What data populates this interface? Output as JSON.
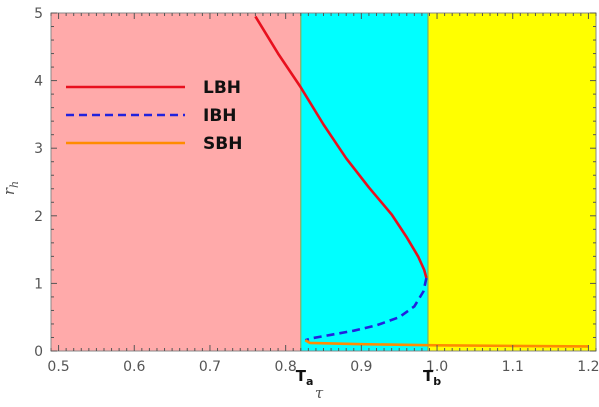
{
  "chart_data": {
    "type": "line",
    "title": "",
    "xlabel": "τ",
    "ylabel": "r_h",
    "ylabel_main": "r",
    "ylabel_sub": "h",
    "xlim": [
      0.49,
      1.21
    ],
    "ylim": [
      0,
      5
    ],
    "xticks": [
      0.5,
      0.6,
      0.7,
      0.8,
      0.9,
      1.0,
      1.1,
      1.2
    ],
    "xtick_labels": [
      "0.5",
      "0.6",
      "0.7",
      "0.8",
      "0.9",
      "1.0",
      "1.1",
      "1.2"
    ],
    "yticks": [
      0,
      1,
      2,
      3,
      4,
      5
    ],
    "ytick_labels": [
      "0",
      "1",
      "2",
      "3",
      "4",
      "5"
    ],
    "regions": [
      {
        "from": 0.49,
        "to": 0.82,
        "color": "#ffaaaa"
      },
      {
        "from": 0.82,
        "to": 0.988,
        "color": "#00ffff"
      },
      {
        "from": 0.988,
        "to": 1.21,
        "color": "#ffff00"
      }
    ],
    "region_border_color": "#7fb060",
    "markers": [
      {
        "x": 0.82,
        "main": "T",
        "sub": "a"
      },
      {
        "x": 0.988,
        "main": "T",
        "sub": "b"
      }
    ],
    "legend_position": "upper-left",
    "series": [
      {
        "name": "LBH",
        "color": "#e8101e",
        "dash": "solid",
        "points": [
          [
            0.76,
            4.95
          ],
          [
            0.79,
            4.4
          ],
          [
            0.82,
            3.9
          ],
          [
            0.85,
            3.35
          ],
          [
            0.88,
            2.85
          ],
          [
            0.91,
            2.42
          ],
          [
            0.94,
            2.02
          ],
          [
            0.96,
            1.68
          ],
          [
            0.975,
            1.4
          ],
          [
            0.983,
            1.2
          ],
          [
            0.986,
            1.08
          ]
        ]
      },
      {
        "name": "IBH",
        "color": "#2222dd",
        "dash": "dashed",
        "points": [
          [
            0.986,
            1.08
          ],
          [
            0.982,
            0.88
          ],
          [
            0.97,
            0.66
          ],
          [
            0.95,
            0.5
          ],
          [
            0.92,
            0.38
          ],
          [
            0.89,
            0.3
          ],
          [
            0.86,
            0.24
          ],
          [
            0.835,
            0.19
          ],
          [
            0.826,
            0.16
          ]
        ]
      },
      {
        "name": "SBH",
        "color": "#ff8c00",
        "dash": "solid",
        "points": [
          [
            0.826,
            0.16
          ],
          [
            0.832,
            0.12
          ],
          [
            0.9,
            0.1
          ],
          [
            1.0,
            0.085
          ],
          [
            1.1,
            0.075
          ],
          [
            1.2,
            0.068
          ]
        ]
      }
    ]
  }
}
